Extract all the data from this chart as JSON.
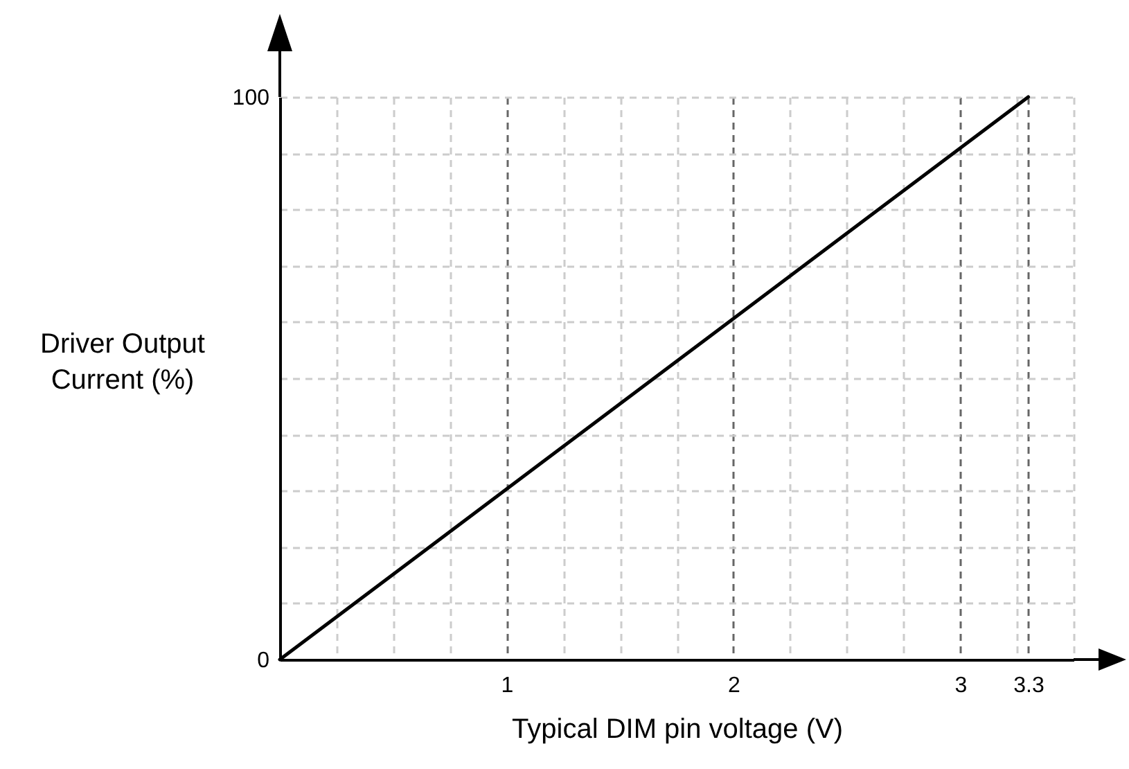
{
  "chart_data": {
    "type": "line",
    "xlabel": "Typical DIM pin voltage (V)",
    "ylabel": "Driver Output\nCurrent (%)",
    "x": [
      0,
      3.3
    ],
    "series": [
      {
        "color": "#000000",
        "values": [
          0,
          100
        ]
      }
    ],
    "xlim": [
      0,
      3.5
    ],
    "ylim": [
      0,
      100
    ],
    "xticks": [
      {
        "value": 0.25,
        "label": null
      },
      {
        "value": 0.5,
        "label": null
      },
      {
        "value": 0.75,
        "label": null
      },
      1,
      {
        "value": 1.25,
        "label": null
      },
      {
        "value": 1.5,
        "label": null
      },
      {
        "value": 1.75,
        "label": null
      },
      2,
      {
        "value": 2.25,
        "label": null
      },
      {
        "value": 2.5,
        "label": null
      },
      {
        "value": 2.75,
        "label": null
      },
      3,
      {
        "value": 3.25,
        "label": null
      },
      3.3,
      {
        "value": 3.5,
        "label": null
      }
    ],
    "yticks": [
      0,
      {
        "value": 10,
        "label": null
      },
      {
        "value": 20,
        "label": null
      },
      {
        "value": 30,
        "label": null
      },
      {
        "value": 40,
        "label": null
      },
      {
        "value": 50,
        "label": null
      },
      {
        "value": 60,
        "label": null
      },
      {
        "value": 70,
        "label": null
      },
      {
        "value": 80,
        "label": null
      },
      {
        "value": 90,
        "label": null
      },
      100
    ],
    "grid": true,
    "marker": "none",
    "line_style": "solid",
    "legend": false
  }
}
